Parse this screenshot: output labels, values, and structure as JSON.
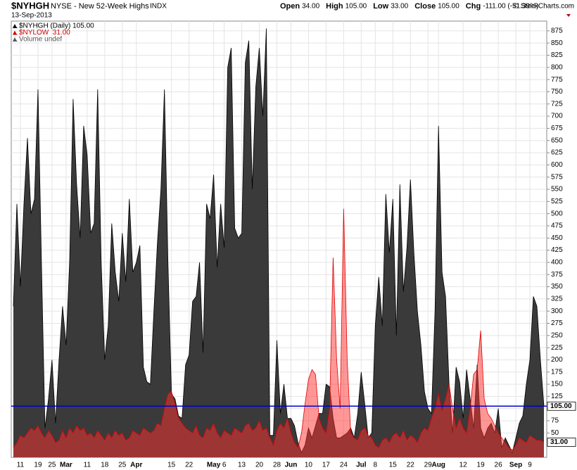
{
  "header": {
    "symbol": "$NYHGH",
    "name": "NYSE - New 52-Week Highs",
    "exchange": "INDX",
    "date": "13-Sep-2013",
    "quote": [
      {
        "label": "Open",
        "value": "34.00"
      },
      {
        "label": "High",
        "value": "105.00"
      },
      {
        "label": "Low",
        "value": "33.00"
      },
      {
        "label": "Close",
        "value": "105.00"
      },
      {
        "label": "Chg",
        "value": "-111.00 (-51.39%)"
      }
    ],
    "credit": "© StockCharts.com"
  },
  "chart_data": {
    "type": "area",
    "legend": [
      "$NYHGH (Daily) 105.00",
      "$NYLOW  31.00",
      "Volume undef"
    ],
    "categories": [
      null,
      null,
      "11",
      null,
      null,
      null,
      null,
      "19",
      null,
      null,
      null,
      "25",
      null,
      null,
      null,
      "Mar",
      null,
      null,
      null,
      null,
      null,
      "11",
      null,
      null,
      null,
      null,
      "18",
      null,
      null,
      null,
      null,
      "25",
      null,
      null,
      null,
      "Apr",
      null,
      null,
      null,
      null,
      null,
      null,
      null,
      null,
      null,
      "15",
      null,
      null,
      null,
      null,
      "22",
      null,
      null,
      null,
      null,
      null,
      null,
      "May",
      null,
      null,
      "6",
      null,
      null,
      null,
      null,
      "13",
      null,
      null,
      null,
      null,
      "20",
      null,
      null,
      null,
      null,
      "28",
      null,
      null,
      null,
      "Jun",
      null,
      null,
      null,
      null,
      "10",
      null,
      null,
      null,
      null,
      "17",
      null,
      null,
      null,
      null,
      "24",
      null,
      null,
      null,
      null,
      "Jul",
      null,
      null,
      null,
      "8",
      null,
      null,
      null,
      null,
      "15",
      null,
      null,
      null,
      null,
      "22",
      null,
      null,
      null,
      null,
      "29",
      null,
      null,
      "Aug",
      null,
      null,
      null,
      null,
      null,
      null,
      "12",
      null,
      null,
      null,
      null,
      "19",
      null,
      null,
      null,
      null,
      "26",
      null,
      null,
      null,
      null,
      "Sep",
      null,
      null,
      null,
      "9",
      null,
      null,
      null,
      null
    ],
    "series": [
      {
        "name": "$NYHGH",
        "color": "#3a3a3a",
        "line_color": "#000000",
        "opacity": 1,
        "last_label": "105.00",
        "values": [
          310,
          520,
          350,
          520,
          655,
          500,
          530,
          755,
          400,
          60,
          120,
          200,
          70,
          200,
          310,
          230,
          400,
          735,
          560,
          450,
          680,
          620,
          460,
          480,
          755,
          400,
          200,
          270,
          480,
          380,
          320,
          460,
          360,
          530,
          380,
          400,
          435,
          185,
          155,
          150,
          300,
          440,
          550,
          755,
          400,
          130,
          120,
          85,
          80,
          190,
          210,
          320,
          330,
          400,
          215,
          520,
          490,
          580,
          390,
          520,
          430,
          800,
          840,
          470,
          450,
          460,
          810,
          855,
          550,
          760,
          840,
          700,
          880,
          45,
          45,
          240,
          90,
          150,
          80,
          80,
          65,
          30,
          10,
          25,
          60,
          40,
          65,
          90,
          90,
          150,
          145,
          80,
          40,
          40,
          45,
          50,
          60,
          40,
          90,
          175,
          110,
          40,
          50,
          270,
          370,
          270,
          540,
          420,
          530,
          250,
          560,
          340,
          430,
          570,
          420,
          300,
          230,
          135,
          100,
          90,
          300,
          680,
          380,
          330,
          150,
          50,
          185,
          155,
          80,
          180,
          120,
          60,
          190,
          60,
          40,
          60,
          70,
          50,
          100,
          20,
          40,
          25,
          10,
          40,
          70,
          85,
          150,
          200,
          330,
          310,
          200,
          105
        ]
      },
      {
        "name": "$NYLOW",
        "color": "#ff3030",
        "line_color": "#e00000",
        "opacity": 0.5,
        "last_label": "31.00",
        "values": [
          20,
          30,
          45,
          40,
          50,
          60,
          55,
          65,
          50,
          40,
          55,
          45,
          30,
          35,
          55,
          40,
          60,
          50,
          65,
          55,
          60,
          45,
          50,
          40,
          55,
          45,
          35,
          50,
          40,
          55,
          45,
          50,
          35,
          40,
          55,
          50,
          45,
          60,
          55,
          50,
          55,
          70,
          65,
          100,
          130,
          135,
          110,
          80,
          70,
          60,
          55,
          50,
          65,
          45,
          40,
          60,
          55,
          70,
          50,
          40,
          55,
          50,
          45,
          60,
          55,
          50,
          65,
          70,
          55,
          60,
          75,
          55,
          60,
          40,
          25,
          55,
          70,
          60,
          80,
          50,
          30,
          20,
          50,
          110,
          160,
          180,
          170,
          80,
          60,
          50,
          100,
          410,
          200,
          100,
          510,
          200,
          50,
          40,
          35,
          55,
          60,
          45,
          40,
          25,
          20,
          35,
          40,
          30,
          45,
          50,
          40,
          55,
          35,
          45,
          40,
          30,
          50,
          60,
          55,
          80,
          100,
          130,
          95,
          120,
          150,
          100,
          60,
          80,
          60,
          50,
          100,
          170,
          180,
          260,
          120,
          90,
          80,
          65,
          50,
          40,
          30,
          20,
          15,
          25,
          40,
          35,
          30,
          45,
          40,
          35,
          35,
          31
        ]
      }
    ],
    "reference_line": {
      "value": 105,
      "color": "#0000cc"
    },
    "ylim": [
      0,
      895
    ],
    "yticks": [
      50,
      75,
      100,
      125,
      150,
      175,
      200,
      225,
      250,
      275,
      300,
      325,
      350,
      375,
      400,
      425,
      450,
      475,
      500,
      525,
      550,
      575,
      600,
      625,
      650,
      675,
      700,
      725,
      750,
      775,
      800,
      825,
      850,
      875
    ],
    "grid": true
  }
}
